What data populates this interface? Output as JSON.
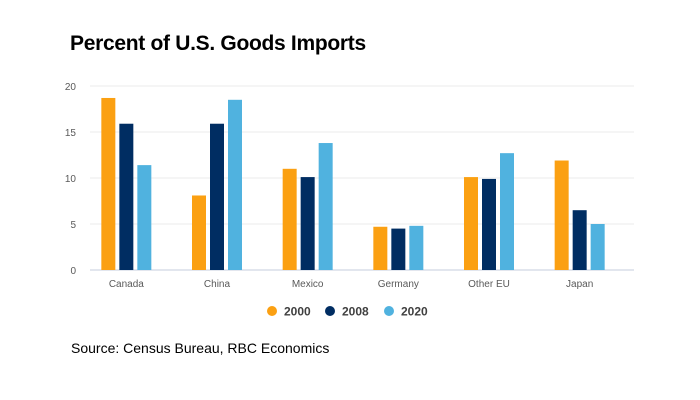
{
  "chart_data": {
    "type": "bar",
    "title": "Percent of U.S. Goods Imports",
    "categories": [
      "Canada",
      "China",
      "Mexico",
      "Germany",
      "Other EU",
      "Japan"
    ],
    "series": [
      {
        "name": "2000",
        "color": "#FBA012",
        "values": [
          18.7,
          8.1,
          11.0,
          4.7,
          10.1,
          11.9
        ]
      },
      {
        "name": "2008",
        "color": "#002D62",
        "values": [
          15.9,
          15.9,
          10.1,
          4.5,
          9.9,
          6.5
        ]
      },
      {
        "name": "2020",
        "color": "#50B2DF",
        "values": [
          11.4,
          18.5,
          13.8,
          4.8,
          12.7,
          5.0
        ]
      }
    ],
    "yticks": [
      "0",
      "5",
      "10",
      "15",
      "20"
    ],
    "ylim": [
      0,
      20
    ],
    "xlabel": "",
    "ylabel": "",
    "grid": true,
    "legend": "bottom"
  },
  "source": "Source: Census Bureau, RBC Economics"
}
